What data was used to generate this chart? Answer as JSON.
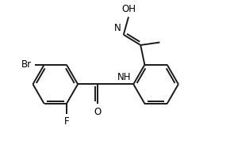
{
  "bg_color": "#ffffff",
  "bond_color": "#1a1a1a",
  "label_color": "#000000",
  "line_width": 1.4,
  "font_size": 8.5,
  "figsize": [
    2.95,
    1.92
  ],
  "dpi": 100,
  "xlim": [
    0.0,
    8.5
  ],
  "ylim": [
    1.0,
    6.2
  ]
}
